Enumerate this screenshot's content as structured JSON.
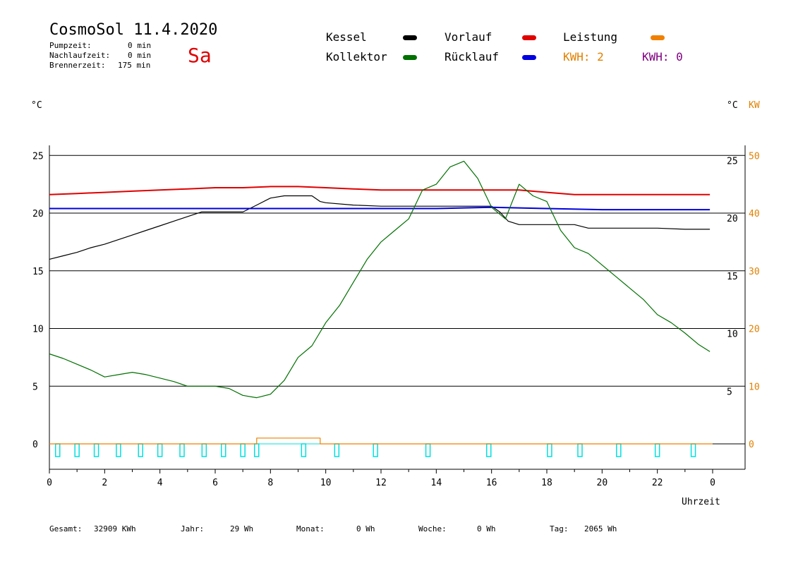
{
  "header": {
    "title": "CosmoSol 11.4.2020",
    "day": "Sa",
    "stats": [
      {
        "label": "Pumpzeit:",
        "value": "0 min"
      },
      {
        "label": "Nachlaufzeit:",
        "value": "0 min"
      },
      {
        "label": "Brennerzeit:",
        "value": "175 min"
      }
    ]
  },
  "legend": {
    "kessel": {
      "label": "Kessel",
      "color": "#000000"
    },
    "vorlauf": {
      "label": "Vorlauf",
      "color": "#e00000"
    },
    "leistung": {
      "label": "Leistung",
      "color": "#f08000"
    },
    "kollektor": {
      "label": "Kollektor",
      "color": "#007000"
    },
    "ruecklauf": {
      "label": "Rücklauf",
      "color": "#0000e0"
    },
    "kwh1": {
      "label": "KWH: 2",
      "color": "#e08000"
    },
    "kwh2": {
      "label": "KWH: 0",
      "color": "#800080"
    }
  },
  "units": {
    "left": "°C",
    "right_c": "°C",
    "right_kw": "KW"
  },
  "footer": [
    {
      "label": "Gesamt:",
      "value": "32909 KWh"
    },
    {
      "label": "Jahr:",
      "value": "29 Wh"
    },
    {
      "label": "Monat:",
      "value": "0 Wh"
    },
    {
      "label": "Woche:",
      "value": "0 Wh"
    },
    {
      "label": "Tag:",
      "value": "2065 Wh"
    }
  ],
  "chart_data": {
    "type": "line",
    "xlabel": "Uhrzeit",
    "x_ticks": [
      "0",
      "2",
      "4",
      "6",
      "8",
      "10",
      "12",
      "14",
      "16",
      "18",
      "20",
      "22",
      "0"
    ],
    "xlim": [
      0,
      24
    ],
    "ylim_left": [
      0,
      25
    ],
    "y_ticks_left": [
      "0",
      "5",
      "10",
      "15",
      "20",
      "25"
    ],
    "y_ticks_right_c": [
      "5",
      "10",
      "15",
      "20",
      "25"
    ],
    "y_ticks_right_kw": [
      "0",
      "10",
      "20",
      "30",
      "40",
      "50"
    ],
    "grid": "horizontal",
    "series": [
      {
        "name": "Kessel",
        "color": "#000000",
        "x": [
          0,
          0.5,
          1,
          1.5,
          2,
          2.5,
          3,
          3.5,
          4,
          4.5,
          5,
          5.5,
          6,
          6.5,
          7,
          7.5,
          8,
          8.5,
          9,
          9.5,
          9.8,
          10,
          11,
          12,
          13,
          14,
          15,
          15.5,
          16,
          16.3,
          16.6,
          17,
          18,
          19,
          19.5,
          20,
          21,
          22,
          23,
          23.9
        ],
        "y": [
          16,
          16.3,
          16.6,
          17,
          17.3,
          17.7,
          18.1,
          18.5,
          18.9,
          19.3,
          19.7,
          20.1,
          20.1,
          20.1,
          20.1,
          20.7,
          21.3,
          21.5,
          21.5,
          21.5,
          21,
          20.9,
          20.7,
          20.6,
          20.6,
          20.6,
          20.6,
          20.6,
          20.6,
          20.1,
          19.3,
          19,
          19,
          19,
          18.7,
          18.7,
          18.7,
          18.7,
          18.6,
          18.6
        ]
      },
      {
        "name": "Vorlauf",
        "color": "#e00000",
        "x": [
          0,
          1,
          2,
          3,
          4,
          5,
          6,
          7,
          8,
          9,
          10,
          11,
          12,
          13,
          14,
          15,
          16,
          17,
          18,
          19,
          20,
          21,
          22,
          23,
          23.9
        ],
        "y": [
          21.6,
          21.7,
          21.8,
          21.9,
          22,
          22.1,
          22.2,
          22.2,
          22.3,
          22.3,
          22.2,
          22.1,
          22,
          22,
          22,
          22,
          22,
          22,
          21.8,
          21.6,
          21.6,
          21.6,
          21.6,
          21.6,
          21.6
        ]
      },
      {
        "name": "Rücklauf",
        "color": "#0000e0",
        "x": [
          0,
          2,
          4,
          6,
          8,
          10,
          12,
          14,
          16,
          18,
          20,
          22,
          23.9
        ],
        "y": [
          20.4,
          20.4,
          20.4,
          20.4,
          20.4,
          20.4,
          20.4,
          20.4,
          20.5,
          20.4,
          20.3,
          20.3,
          20.3
        ]
      },
      {
        "name": "Kollektor",
        "color": "#007000",
        "x": [
          0,
          0.5,
          1,
          1.5,
          2,
          2.5,
          3,
          3.5,
          4,
          4.5,
          5,
          5.5,
          6,
          6.5,
          7,
          7.5,
          8,
          8.5,
          9,
          9.5,
          10,
          10.5,
          11,
          11.5,
          12,
          12.5,
          13,
          13.5,
          14,
          14.5,
          15,
          15.5,
          16,
          16.5,
          17,
          17.5,
          18,
          18.5,
          19,
          19.5,
          20,
          20.5,
          21,
          21.5,
          22,
          22.5,
          23,
          23.5,
          23.9
        ],
        "y": [
          7.8,
          7.4,
          6.9,
          6.4,
          5.8,
          6,
          6.2,
          6,
          5.7,
          5.4,
          5,
          5,
          5,
          4.8,
          4.2,
          4,
          4.3,
          5.5,
          7.5,
          8.5,
          10.5,
          12,
          14,
          16,
          17.5,
          18.5,
          19.5,
          22,
          22.5,
          24,
          24.5,
          23,
          20.5,
          19.5,
          22.5,
          21.5,
          21,
          18.5,
          17,
          16.5,
          15.5,
          14.5,
          13.5,
          12.5,
          11.2,
          10.5,
          9.6,
          8.6,
          8
        ]
      },
      {
        "name": "Leistung",
        "color": "#f08000",
        "x": [
          0,
          7.5,
          7.5,
          9.4,
          9.8,
          9.8,
          24
        ],
        "y": [
          0,
          0,
          0.5,
          0.5,
          0.5,
          0,
          0
        ]
      }
    ],
    "pump_marks": [
      0.3,
      1,
      1.7,
      2.5,
      3.3,
      4,
      4.8,
      5.6,
      6.3,
      7,
      7.5,
      9.2,
      10.4,
      11.8,
      13.7,
      15.9,
      18.1,
      19.2,
      20.6,
      22,
      23.3
    ]
  }
}
